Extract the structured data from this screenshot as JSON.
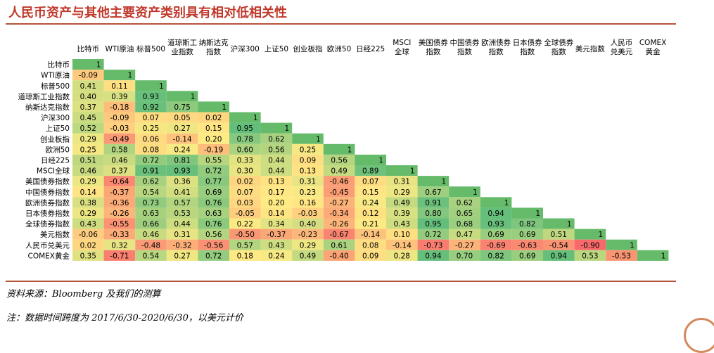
{
  "title": "人民币资产与其他主要资产类别具有相对低相关性",
  "source": "资料来源：Bloomberg 及我们的测算",
  "note": "注：数据时间跨度为 2017/6/30-2020/6/30，以美元计价",
  "colors": {
    "title": "#c0392b",
    "rule": "#b5533c",
    "diagonal": "#66bb6a",
    "scale_low": "#f8696b",
    "scale_mid": "#ffeb84",
    "scale_high": "#63be7b"
  },
  "chart_data": {
    "type": "heatmap",
    "title": "人民币资产与其他主要资产类别具有相对低相关性",
    "columns": [
      [
        "比特币"
      ],
      [
        "WTI原油"
      ],
      [
        "标普500"
      ],
      [
        "道琼斯工",
        "业指数"
      ],
      [
        "纳斯达克",
        "指数"
      ],
      [
        "沪深300"
      ],
      [
        "上证50"
      ],
      [
        "创业板指"
      ],
      [
        "欧洲50"
      ],
      [
        "日经225"
      ],
      [
        "MSCI",
        "全球"
      ],
      [
        "美国债券",
        "指数"
      ],
      [
        "中国债券",
        "指数"
      ],
      [
        "欧洲债券",
        "指数"
      ],
      [
        "日本债券",
        "指数"
      ],
      [
        "全球债券",
        "指数"
      ],
      [
        "美元指数"
      ],
      [
        "人民币",
        "兑美元"
      ],
      [
        "COMEX",
        "黄金"
      ]
    ],
    "rows": [
      "比特币",
      "WTI原油",
      "标普500",
      "道琼斯工业指数",
      "纳斯达克指数",
      "沪深300",
      "上证50",
      "创业板指",
      "欧洲50",
      "日经225",
      "MSCI全球",
      "美国债券指数",
      "中国债券指数",
      "欧洲债券指数",
      "日本债券指数",
      "全球债券指数",
      "美元指数",
      "人民币兑美元",
      "COMEX黄金"
    ],
    "values": [
      [
        "1"
      ],
      [
        "-0.09",
        "1"
      ],
      [
        "0.41",
        "0.11",
        "1"
      ],
      [
        "0.40",
        "0.39",
        "0.93",
        "1"
      ],
      [
        "0.37",
        "-0.18",
        "0.92",
        "0.75",
        "1"
      ],
      [
        "0.45",
        "-0.09",
        "0.07",
        "0.05",
        "0.02",
        "1"
      ],
      [
        "0.52",
        "-0.03",
        "0.25",
        "0.27",
        "0.15",
        "0.95",
        "1"
      ],
      [
        "0.29",
        "-0.49",
        "0.06",
        "-0.14",
        "0.20",
        "0.78",
        "0.62",
        "1"
      ],
      [
        "0.25",
        "0.58",
        "0.08",
        "0.24",
        "-0.19",
        "0.60",
        "0.56",
        "0.25",
        "1"
      ],
      [
        "0.51",
        "0.46",
        "0.72",
        "0.81",
        "0.55",
        "0.33",
        "0.44",
        "0.09",
        "0.56",
        "1"
      ],
      [
        "0.46",
        "0.37",
        "0.91",
        "0.93",
        "0.72",
        "0.30",
        "0.44",
        "0.13",
        "0.49",
        "0.89",
        "1"
      ],
      [
        "0.29",
        "-0.64",
        "0.62",
        "0.36",
        "0.77",
        "0.02",
        "0.13",
        "0.31",
        "-0.46",
        "0.07",
        "0.31",
        "1"
      ],
      [
        "0.14",
        "-0.37",
        "0.54",
        "0.41",
        "0.69",
        "0.07",
        "0.17",
        "0.23",
        "-0.45",
        "0.15",
        "0.29",
        "0.67",
        "1"
      ],
      [
        "0.38",
        "-0.36",
        "0.73",
        "0.57",
        "0.76",
        "0.03",
        "0.20",
        "0.16",
        "-0.27",
        "0.24",
        "0.49",
        "0.91",
        "0.62",
        "1"
      ],
      [
        "0.29",
        "-0.26",
        "0.63",
        "0.53",
        "0.63",
        "-0.05",
        "0.14",
        "-0.03",
        "-0.34",
        "0.12",
        "0.39",
        "0.80",
        "0.65",
        "0.94",
        "1"
      ],
      [
        "0.43",
        "-0.55",
        "0.66",
        "0.44",
        "0.76",
        "0.22",
        "0.34",
        "0.40",
        "-0.26",
        "0.21",
        "0.43",
        "0.95",
        "0.68",
        "0.93",
        "0.82",
        "1"
      ],
      [
        "-0.06",
        "-0.33",
        "0.46",
        "0.31",
        "0.56",
        "-0.50",
        "-0.37",
        "-0.23",
        "-0.67",
        "-0.14",
        "0.10",
        "0.72",
        "0.47",
        "0.69",
        "0.69",
        "0.51",
        "1"
      ],
      [
        "0.02",
        "0.32",
        "-0.48",
        "-0.32",
        "-0.56",
        "0.57",
        "0.43",
        "0.29",
        "0.61",
        "0.08",
        "-0.14",
        "-0.73",
        "-0.27",
        "-0.69",
        "-0.63",
        "-0.54",
        "-0.90",
        "1"
      ],
      [
        "0.35",
        "-0.71",
        "0.54",
        "0.27",
        "0.72",
        "0.18",
        "0.24",
        "0.49",
        "-0.40",
        "0.09",
        "0.28",
        "0.94",
        "0.70",
        "0.82",
        "0.69",
        "0.94",
        "0.53",
        "-0.53",
        "1"
      ]
    ],
    "scale": {
      "min": -0.9,
      "mid": 0.2,
      "max": 0.95
    }
  }
}
